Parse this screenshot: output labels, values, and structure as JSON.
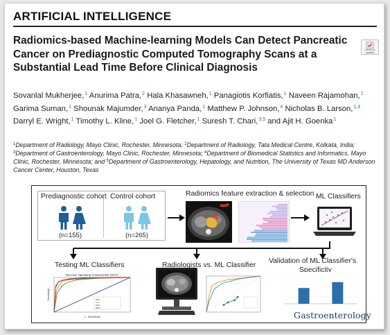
{
  "header": {
    "section": "ARTIFICIAL INTELLIGENCE",
    "title": "Radiomics-based Machine-learning Models Can Detect Pancreatic Cancer on Prediagnostic Computed Tomography Scans at a Substantial Lead Time Before Clinical Diagnosis",
    "check_badge": "Check for updates"
  },
  "authors": [
    {
      "name": "Sovanlal Mukherjee,",
      "sup": "1"
    },
    {
      "name": "Anurima Patra,",
      "sup": "2"
    },
    {
      "name": "Hala Khasawneh,",
      "sup": "1"
    },
    {
      "name": "Panagiotis Korfiatis,",
      "sup": "1"
    },
    {
      "name": "Naveen Rajamohan,",
      "sup": "1"
    },
    {
      "name": "Garima Suman,",
      "sup": "1"
    },
    {
      "name": "Shounak Majumder,",
      "sup": "3"
    },
    {
      "name": "Ananya Panda,",
      "sup": "1"
    },
    {
      "name": "Matthew P. Johnson,",
      "sup": "4"
    },
    {
      "name": "Nicholas B. Larson,",
      "sup": "1,4"
    },
    {
      "name": "Darryl E. Wright,",
      "sup": "1"
    },
    {
      "name": "Timothy L. Kline,",
      "sup": "1"
    },
    {
      "name": "Joel G. Fletcher,",
      "sup": "1"
    },
    {
      "name": "Suresh T. Chari,",
      "sup": "3,5"
    },
    {
      "name": "and Ajit H. Goenka",
      "sup": "1"
    }
  ],
  "affiliations": [
    {
      "sup": "1",
      "text": "Department of Radiology, Mayo Clinic, Rochester, Minnesota; "
    },
    {
      "sup": "2",
      "text": "Department of Radiology, Tata Medical Centre, Kolkata, India; "
    },
    {
      "sup": "3",
      "text": "Department of Gastroenterology, Mayo Clinic, Rochester, Minnesota; "
    },
    {
      "sup": "4",
      "text": "Department of Biomedical Statistics and Informatics, Mayo Clinic, Rochester, Minnesota; and "
    },
    {
      "sup": "5",
      "text": "Department of Gastroenterology, Hepatology, and Nutrition, The University of Texas MD Anderson Cancer Center, Houston, Texas"
    }
  ],
  "abstract": {
    "prediagnostic_label": "Prediagnostic cohort",
    "control_label": "Control cohort",
    "prediagnostic_n": "(n=155)",
    "control_n": "(n=265)",
    "radiomics_label": "Radiomics feature extraction & selection",
    "ml_label": "ML Classifiers",
    "testing_label": "Testing ML Classifiers",
    "radiologists_label": "Radiologists vs. ML Classifier",
    "validation_label_1": "Validation of ML Classifier's",
    "validation_label_2": "Specificity",
    "roc_title": "Receiver Operating Characteristic (ROC)",
    "roc_xlabel": "1 - Specificity",
    "roc_ylabel": "Sensitivity",
    "journal": "Gastroenterology",
    "colors": {
      "prediagnostic_person": "#1f5f97",
      "control_person": "#7ec4e6",
      "arrow": "#111111",
      "bar": "#2b6fae"
    }
  },
  "chart_data": [
    {
      "type": "line",
      "title": "Receiver Operating Characteristic (ROC)",
      "xlabel": "1 - Specificity",
      "ylabel": "Sensitivity",
      "xlim": [
        0,
        1
      ],
      "ylim": [
        0,
        1
      ],
      "series": [
        {
          "color": "#1f77b4",
          "x": [
            0,
            0.02,
            0.05,
            0.1,
            0.2,
            0.4,
            1
          ],
          "y": [
            0,
            0.7,
            0.85,
            0.92,
            0.96,
            0.99,
            1
          ]
        },
        {
          "color": "#ff7f0e",
          "x": [
            0,
            0.03,
            0.07,
            0.12,
            0.25,
            0.5,
            1
          ],
          "y": [
            0,
            0.6,
            0.8,
            0.9,
            0.95,
            0.98,
            1
          ]
        },
        {
          "color": "#2ca02c",
          "x": [
            0,
            0.04,
            0.1,
            0.18,
            0.3,
            0.6,
            1
          ],
          "y": [
            0,
            0.55,
            0.75,
            0.86,
            0.93,
            0.98,
            1
          ]
        },
        {
          "color": "#d62728",
          "x": [
            0,
            0.02,
            0.06,
            0.15,
            0.35,
            0.7,
            1
          ],
          "y": [
            0,
            0.75,
            0.88,
            0.94,
            0.97,
            0.99,
            1
          ]
        }
      ]
    },
    {
      "type": "line",
      "series": [
        {
          "color": "#ff7f0e",
          "x": [
            0,
            0.05,
            0.1,
            0.2,
            0.4,
            1
          ],
          "y": [
            0,
            0.45,
            0.72,
            0.82,
            0.9,
            1
          ]
        },
        {
          "color": "#1f9cd6",
          "x": [
            0,
            0.05,
            0.15,
            0.3,
            0.6,
            1
          ],
          "y": [
            0,
            0.3,
            0.65,
            0.8,
            0.92,
            1
          ]
        }
      ],
      "points": [
        {
          "x": 0.32,
          "y": 0.2
        },
        {
          "x": 0.4,
          "y": 0.27
        },
        {
          "x": 0.52,
          "y": 0.33
        },
        {
          "x": 0.58,
          "y": 0.42
        }
      ],
      "xlim": [
        0,
        1
      ],
      "ylim": [
        0,
        1
      ]
    },
    {
      "type": "bar",
      "values": [
        0.68,
        0.82
      ],
      "ylim": [
        0.3,
        1.0
      ]
    }
  ]
}
